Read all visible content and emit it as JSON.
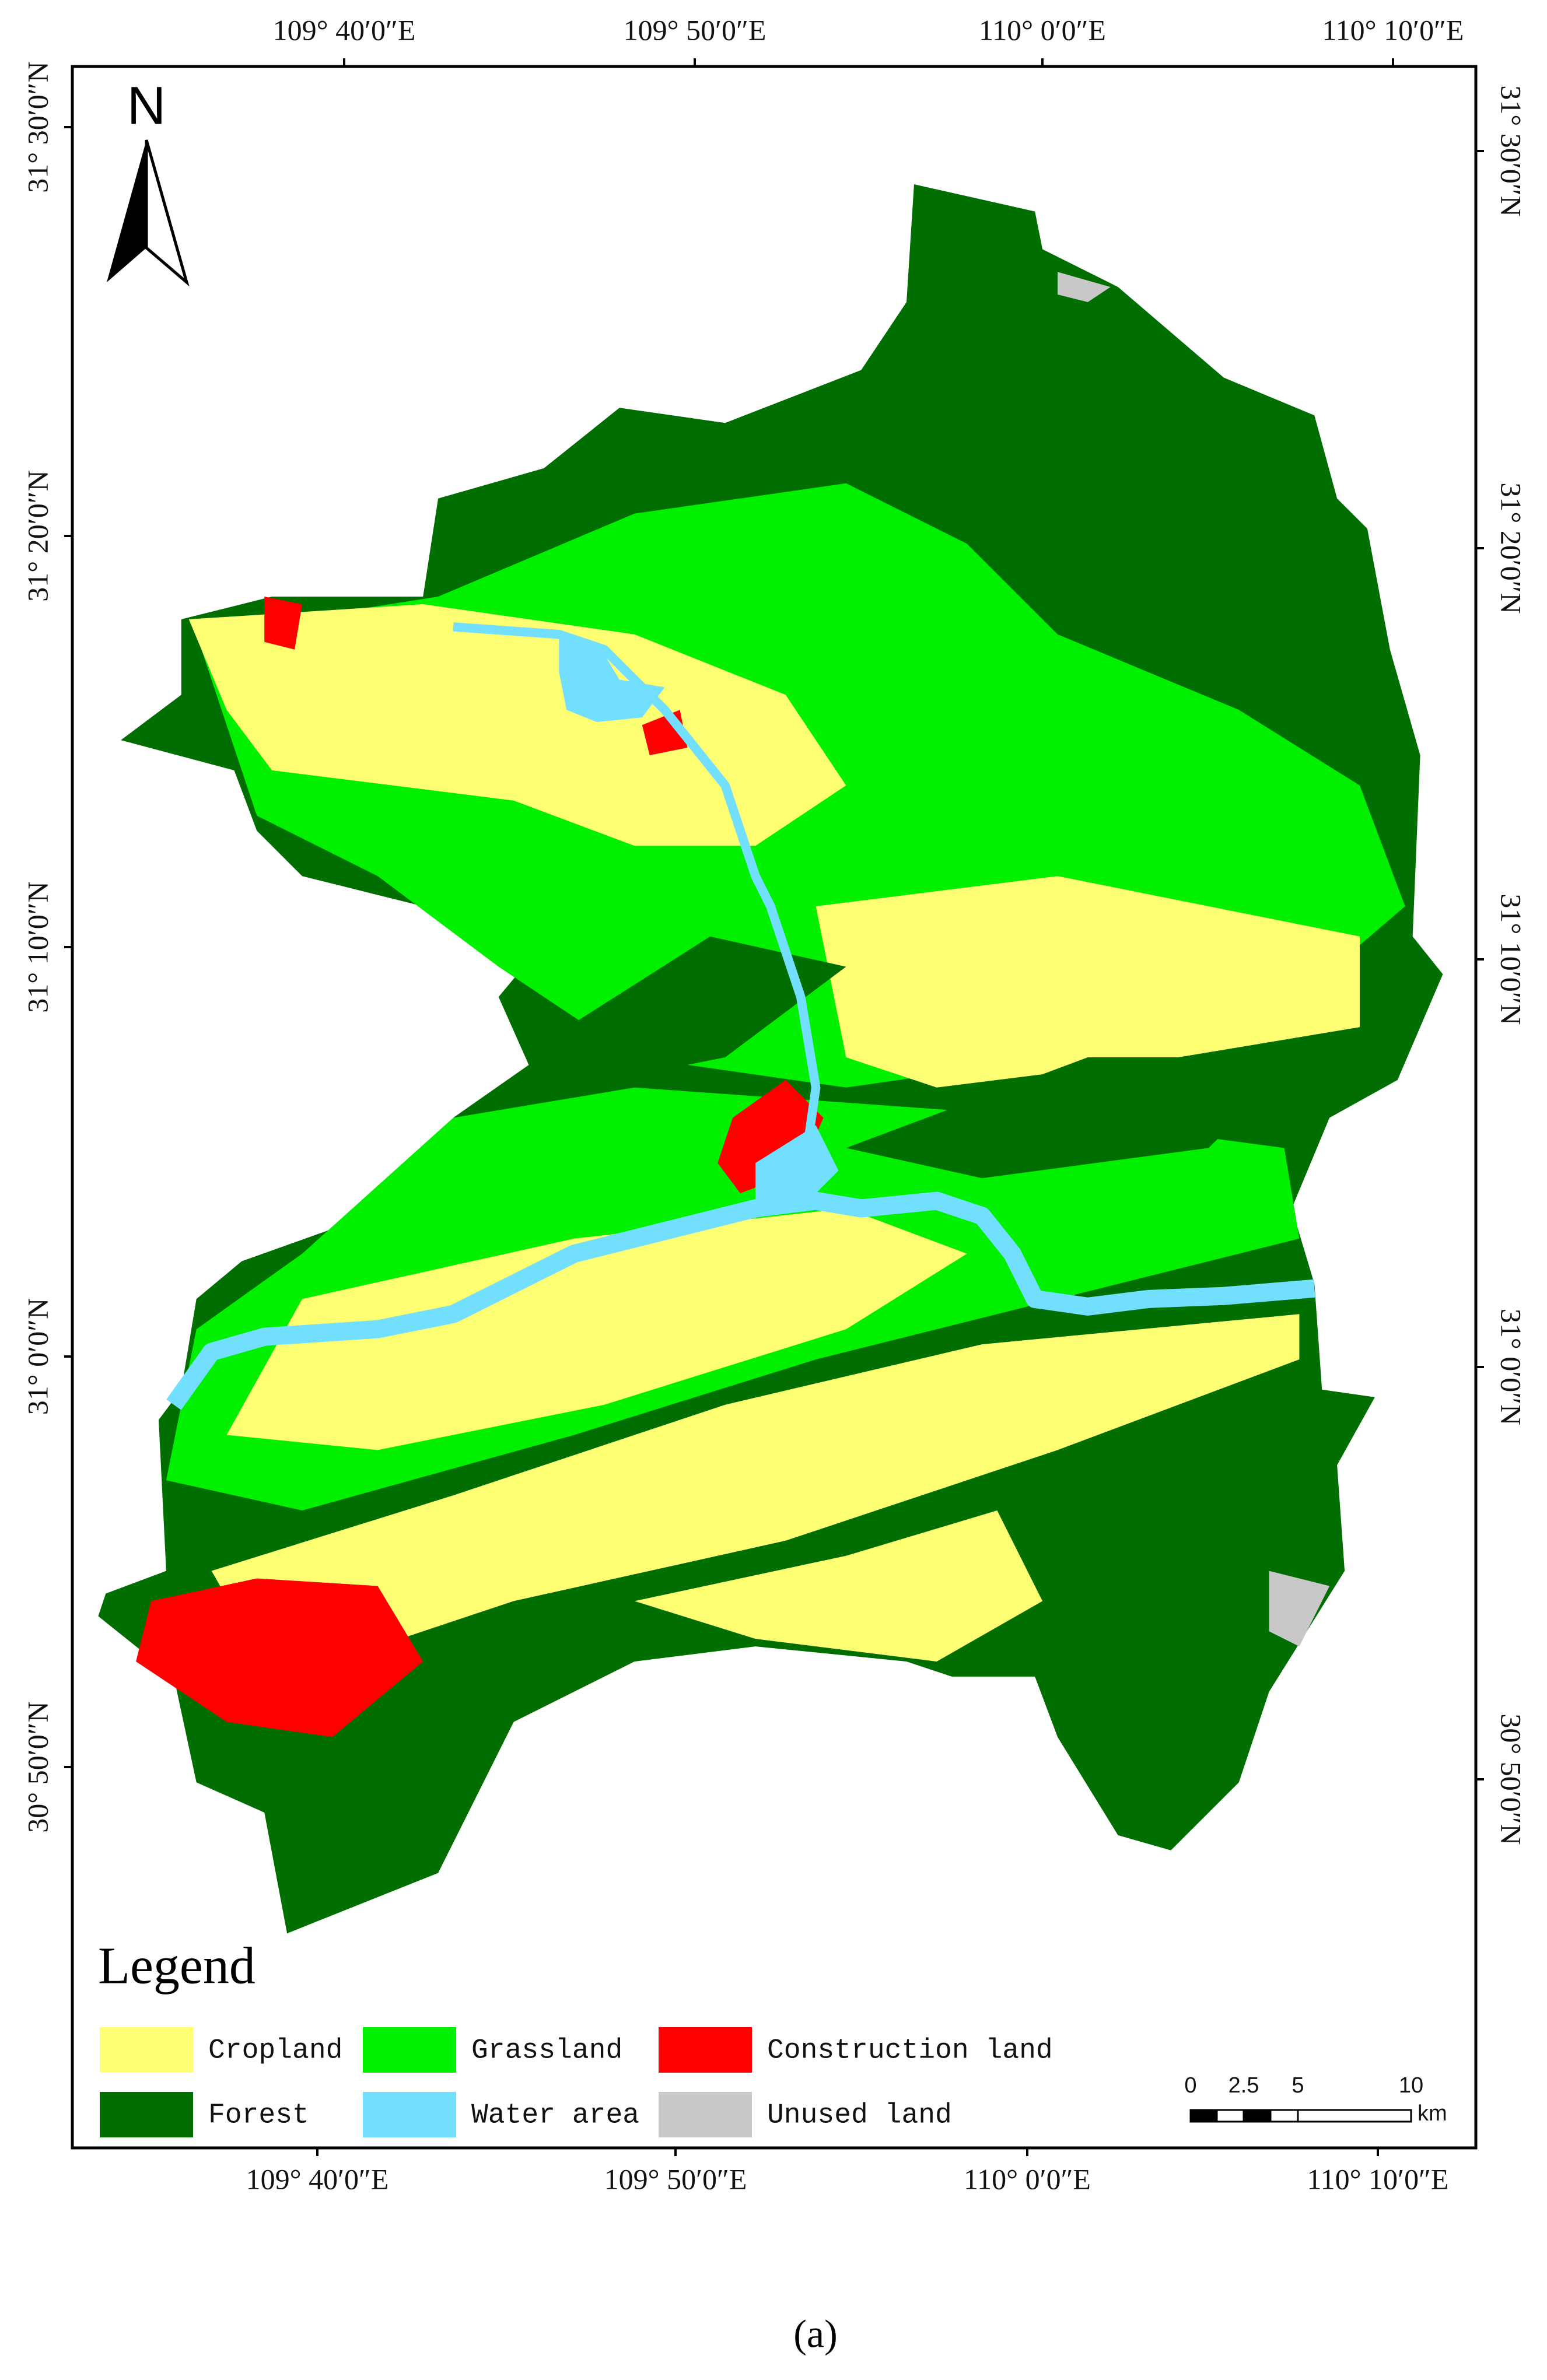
{
  "map": {
    "north": "N",
    "top_labels": [
      "109° 40′0″E",
      "109° 50′0″E",
      "110° 0′0″E",
      "110° 10′0″E"
    ],
    "bottom_labels": [
      "109° 40′0″E",
      "109° 50′0″E",
      "110° 0′0″E",
      "110° 10′0″E"
    ],
    "left_labels": [
      "31° 30′0″N",
      "31° 20′0″N",
      "31° 10′0″N",
      "31° 0′0″N",
      "30° 50′0″N"
    ],
    "right_labels": [
      "31° 30′0″N",
      "31° 20′0″N",
      "31° 10′0″N",
      "31° 0′0″N",
      "30° 50′0″N"
    ],
    "legend": {
      "title": "Legend",
      "items": [
        {
          "label": "Cropland",
          "color": "#ffff73"
        },
        {
          "label": "Grassland",
          "color": "#00f000"
        },
        {
          "label": "Construction land",
          "color": "#ff0000"
        },
        {
          "label": "Forest",
          "color": "#006e00"
        },
        {
          "label": "Water area",
          "color": "#73dfff"
        },
        {
          "label": "Unused land",
          "color": "#c8c8c8"
        }
      ]
    },
    "scale_bar": {
      "labels": [
        "0",
        "2.5",
        "5",
        "10"
      ],
      "unit": "km"
    }
  },
  "caption": "(a)"
}
